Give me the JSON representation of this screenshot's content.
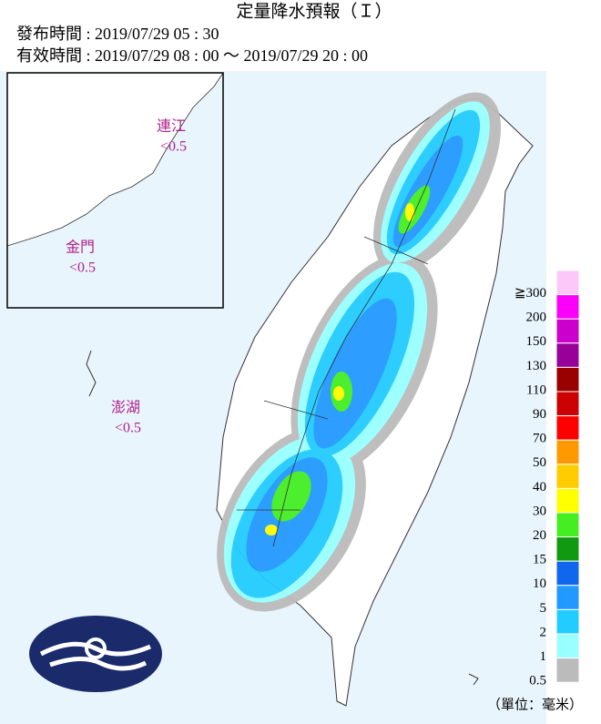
{
  "header": {
    "title": "定量降水預報（Ｉ）",
    "issued": "發布時間 : 2019/07/29 05 : 30",
    "valid": "有效時間 : 2019/07/29 08 : 00 ～ 2019/07/29 20 : 00"
  },
  "regions": [
    {
      "name": "連江",
      "value": "<0.5"
    },
    {
      "name": "金門",
      "value": "<0.5"
    },
    {
      "name": "澎湖",
      "value": "<0.5"
    }
  ],
  "legend": {
    "unit": "（單位：毫米）",
    "levels": [
      {
        "label": "≧300",
        "color": "#fcc8fa"
      },
      {
        "label": "200",
        "color": "#fa00fa"
      },
      {
        "label": "150",
        "color": "#cc00cc"
      },
      {
        "label": "130",
        "color": "#990099"
      },
      {
        "label": "110",
        "color": "#990000"
      },
      {
        "label": "90",
        "color": "#cc0000"
      },
      {
        "label": "70",
        "color": "#ff0000"
      },
      {
        "label": "50",
        "color": "#ff9900"
      },
      {
        "label": "40",
        "color": "#ffcc00"
      },
      {
        "label": "30",
        "color": "#ffff00"
      },
      {
        "label": "20",
        "color": "#44ee22"
      },
      {
        "label": "15",
        "color": "#119911"
      },
      {
        "label": "10",
        "color": "#1166ee"
      },
      {
        "label": "5",
        "color": "#2299ff"
      },
      {
        "label": "2",
        "color": "#22ccff"
      },
      {
        "label": "1",
        "color": "#99ffff"
      },
      {
        "label": "0.5",
        "color": "#bbbbbb"
      }
    ]
  }
}
